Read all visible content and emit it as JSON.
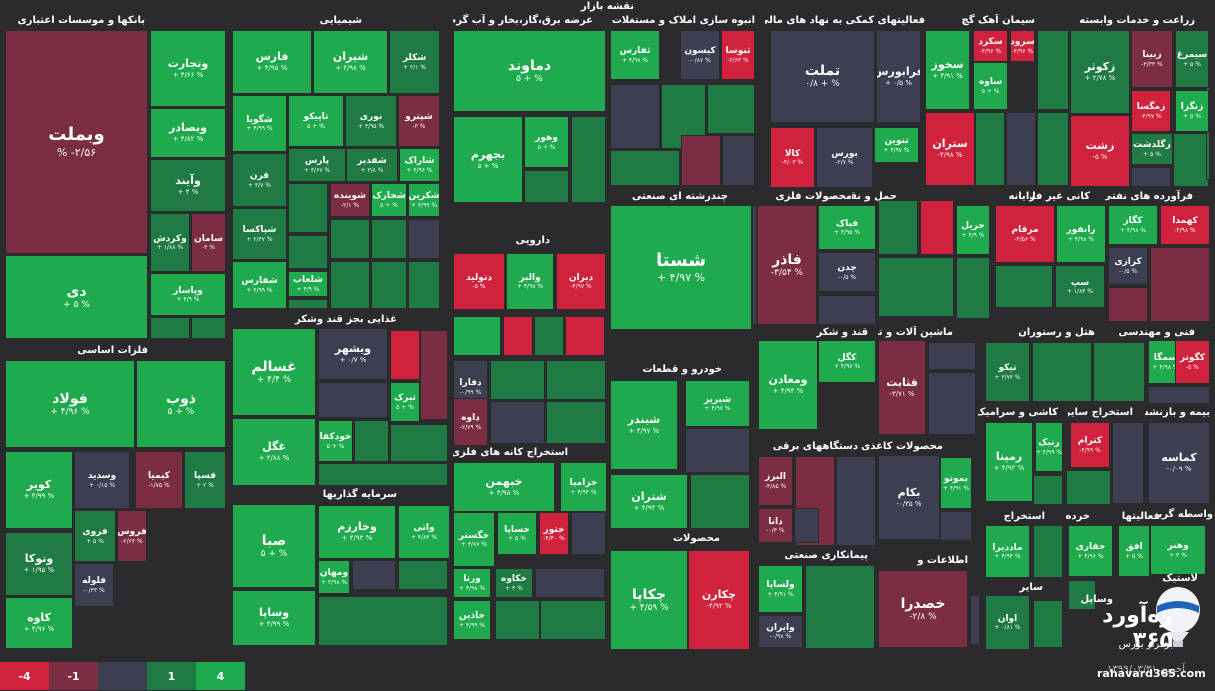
{
  "page_title": "نقشه بازار",
  "legend": [
    "-4",
    "-1",
    "",
    "1",
    "4"
  ],
  "legend_colors": [
    "#d0223d",
    "#7b2d42",
    "#3c3f52",
    "#1f7a44",
    "#1fab4d"
  ],
  "footer": {
    "date_label": "آخرین ۱۳۹۹/۰۳/۳۱",
    "site": "rahavard365.com",
    "brand_name": "ره‌آورد ۳۶۵",
    "brand_tagline": "برفراز بورس"
  },
  "colors": {
    "g4": "#1fab4d",
    "g1": "#1f7a44",
    "n": "#3c3f52",
    "r1": "#7b2d42",
    "r4": "#d0223d",
    "bg": "#2b2b2e"
  },
  "headers": [
    "بانکها و موسسات اعتباری",
    "شیمیایی",
    "عرضه برق،گاز،بخار و آب گرم",
    "انبوه سازی املاک و مستغلات",
    "فعالیتهای کمکی به نهاد های مالی",
    "سیمان آهک گچ",
    "زراعت و خدمات وابسته",
    "فلزات اساسی",
    "غذایی بجز قند وشکر",
    "سرمایه گذاریها",
    "دارویی",
    "چندرشته ای صنعتی",
    "محصولات فلزی",
    "حمل و نقل انبارداری و",
    "رایانه",
    "کانی غیر فلزی",
    "فرآورده های نفتی",
    "خودرو و قطعات",
    "استخراج کانه های فلزی",
    "قند و شکر",
    "ماشین آلات و تجهیزات",
    "هتل و رستوران",
    "فنی و مهندسی",
    "کاشی و سرامیک",
    "استخراج سایر",
    "بیمه و بازنشستگی",
    "دستگاههای برقی",
    "محصولات کاغذی",
    "محصولات",
    "استخراج",
    "خرده",
    "فعالیتها",
    "واسطه گریهای مالی و",
    "پیمانکاری صنعتی",
    "اطلاعات و",
    "سایر",
    "لاستیک و",
    "وسایل"
  ],
  "tiles": [
    [
      "وبملت",
      "% -۲/۵۶",
      "r1"
    ],
    [
      "دی",
      "+ ۵ %",
      "g4"
    ],
    [
      "وتجارت",
      "+ ۴/۶۶ %",
      "g4"
    ],
    [
      "وبصادر",
      "+ ۴/۸۲ %",
      "g4"
    ],
    [
      "وآیند",
      "+ ۴ %",
      "g1"
    ],
    [
      "وکردش",
      "+ ۱/۸۸ %",
      "g1"
    ],
    [
      "سامان",
      "-۳ %",
      "r1"
    ],
    [
      "وپاسار",
      "+ ۴/۹ %",
      "g4"
    ],
    [
      "فارس",
      "+ ۴/۹۵ %",
      "g4"
    ],
    [
      "شیران",
      "+ ۴/۹۸ %",
      "g4"
    ],
    [
      "شکلر",
      "+ ۳/۱ %",
      "g1"
    ],
    [
      "شگویا",
      "+ ۴/۹۹ %",
      "g4"
    ],
    [
      "تاپیکو",
      "۵ + %",
      "g4"
    ],
    [
      "نوری",
      "+ ۳/۹۵ %",
      "g1"
    ],
    [
      "شپترو",
      "-۳ %",
      "r1"
    ],
    [
      "قرن",
      "+ ۳/۷ %",
      "g1"
    ],
    [
      "پارس",
      "+ ۳/۶۷ %",
      "g1"
    ],
    [
      "شفدیر",
      "+ ۳/۸ %",
      "g1"
    ],
    [
      "شاراک",
      "+ ۴/۹۶ %",
      "g4"
    ],
    [
      "شپاکسا",
      "+ ۲/۳۷ %",
      "g1"
    ],
    [
      "شوینده",
      "-۲/۱ %",
      "r1"
    ],
    [
      "شخارک",
      "۵ + %",
      "g4"
    ],
    [
      "شکرین",
      "+ ۴/۹۹ %",
      "g4"
    ],
    [
      "شفارس",
      "+ ۴/۹۹ %",
      "g4"
    ],
    [
      "شلعاب",
      "+ ۴/۹ %",
      "g4"
    ],
    [
      "دماوند",
      "۵ + %",
      "g4"
    ],
    [
      "بجهرم",
      "۵ + %",
      "g4"
    ],
    [
      "وهور",
      "۵ + %",
      "g4"
    ],
    [
      "ثفارس",
      "+ ۴/۹۸ %",
      "g4"
    ],
    [
      "کیسون",
      "-۰/۸۷ %",
      "n"
    ],
    [
      "ثنوسا",
      "-۳/۶۳ %",
      "r4"
    ],
    [
      "تملت",
      "۰/۸ + %",
      "n"
    ],
    [
      "فرابورس",
      "+ ۰/۵ %",
      "n"
    ],
    [
      "کالا",
      "-۴/۰۳ %",
      "r4"
    ],
    [
      "بورس",
      "-۲/۷ %",
      "n"
    ],
    [
      "تنوین",
      "+ ۴/۹۷ %",
      "g4"
    ],
    [
      "سخوز",
      "+ ۴/۹۱ %",
      "g4"
    ],
    [
      "سکرد",
      "-۴/۹۶ %",
      "r4"
    ],
    [
      "سرود",
      "-۴/۹۶ %",
      "r4"
    ],
    [
      "ساوه",
      "۵ + %",
      "g4"
    ],
    [
      "ستران",
      "-۴/۹۸ %",
      "r4"
    ],
    [
      "زکوثر",
      "+ ۲/۷۸ %",
      "g1"
    ],
    [
      "زبینا",
      "-۳/۳۳ %",
      "r1"
    ],
    [
      "سیمرغ",
      "+ ۵ %",
      "g1"
    ],
    [
      "زمگسا",
      "-۴/۹۷ %",
      "r4"
    ],
    [
      "زنگزا",
      "+ ۵ %",
      "g4"
    ],
    [
      "زشت",
      "-۵ %",
      "r4"
    ],
    [
      "زگلدشت",
      "+ ۵ %",
      "g1"
    ],
    [
      "فولاد",
      "+ ۴/۹۶ %",
      "g4"
    ],
    [
      "ذوب",
      "۵ + %",
      "g4"
    ],
    [
      "کویر",
      "+ ۴/۹۹ %",
      "g4"
    ],
    [
      "وسدید",
      "+ ۰/۱۵ %",
      "n"
    ],
    [
      "کیمیا",
      "-۱/۷۵ %",
      "r1"
    ],
    [
      "فسپا",
      "+ ۲ %",
      "g1"
    ],
    [
      "فروی",
      "+ ۵ %",
      "g1"
    ],
    [
      "فروس",
      "-۲/۶۳ %",
      "r1"
    ],
    [
      "وتوکا",
      "+ ۱/۹۵ %",
      "g1"
    ],
    [
      "فلوله",
      "-۰/۳۳ %",
      "n"
    ],
    [
      "کاوه",
      "+ ۴/۹۶ %",
      "g4"
    ],
    [
      "غسالم",
      "+ ۴/۴ %",
      "g4"
    ],
    [
      "ویشهر",
      "+ ۰/۷ %",
      "n"
    ],
    [
      "تبرک",
      "۵ + %",
      "g4"
    ],
    [
      "خودکفا",
      "۵ + %",
      "g4"
    ],
    [
      "غگل",
      "+ ۴/۸۸ %",
      "g4"
    ],
    [
      "صبا",
      "۵ + %",
      "g4"
    ],
    [
      "وخارزم",
      "+ ۴/۹۳ %",
      "g4"
    ],
    [
      "واتی",
      "+ ۴/۸۳ %",
      "g4"
    ],
    [
      "ومهان",
      "+ ۴/۹۸ %",
      "g4"
    ],
    [
      "وساپا",
      "+ ۴/۹۹ %",
      "g4"
    ],
    [
      "دتولید",
      "-۵ %",
      "r4"
    ],
    [
      "والبر",
      "+ ۴/۹۸ %",
      "g4"
    ],
    [
      "دیران",
      "-۴/۹۷ %",
      "r4"
    ],
    [
      "دفارا",
      "-۰/۹۹ %",
      "n"
    ],
    [
      "داوه",
      "-۲/۷۹ %",
      "r1"
    ],
    [
      "شستا",
      "+ ۴/۹۷ %",
      "g4"
    ],
    [
      "فباک",
      "+ ۴/۹۵ %",
      "g4"
    ],
    [
      "فاذر",
      "-۳/۵۴ %",
      "r1"
    ],
    [
      "چدن",
      "-۰/۵ %",
      "n"
    ],
    [
      "حریل",
      "+ ۴/۹ %",
      "g4"
    ],
    [
      "مرقام",
      "-۴/۵۶ %",
      "r4"
    ],
    [
      "رانفور",
      "+ ۴/۹۸ %",
      "g4"
    ],
    [
      "سپ",
      "+ ۱/۸۴ %",
      "g1"
    ],
    [
      "کگاز",
      "+ ۴/۹۸ %",
      "g4"
    ],
    [
      "کهمدا",
      "-۴/۹۸ %",
      "r4"
    ],
    [
      "کرازی",
      "-۰/۵ %",
      "n"
    ],
    [
      "شبندر",
      "+ ۴/۹۷ %",
      "g4"
    ],
    [
      "شبریز",
      "+ ۴/۹۷ %",
      "g4"
    ],
    [
      "شتران",
      "+ ۴/۹۴ %",
      "g4"
    ],
    [
      "کگل",
      "+ ۴/۹۷ %",
      "g4"
    ],
    [
      "ومعادن",
      "+ ۴/۹۴ %",
      "g4"
    ],
    [
      "قثابت",
      "-۳/۷۱ %",
      "r1"
    ],
    [
      "تیکو",
      "+ ۳/۷۳ %",
      "g1"
    ],
    [
      "سمگا",
      "+ ۴/۹۸ %",
      "g4"
    ],
    [
      "رنیک",
      "+ ۴/۹۹ %",
      "g4"
    ],
    [
      "رمپنا",
      "+ ۴/۹۲ %",
      "g4"
    ],
    [
      "کترام",
      "-۴/۹۹ %",
      "r4"
    ],
    [
      "کماسه",
      "-۰/۰۹ %",
      "n"
    ],
    [
      "البرز",
      "-۴/۸۵ %",
      "r1"
    ],
    [
      "دانا",
      "-۰/۳ %",
      "r1"
    ],
    [
      "بکام",
      "-۰/۳۵ %",
      "n"
    ],
    [
      "بموتو",
      "+ ۴/۹۱ %",
      "g4"
    ],
    [
      "خبهمن",
      "+ ۴/۹۸ %",
      "g4"
    ],
    [
      "خزامیا",
      "+ ۴/۹۴ %",
      "g4"
    ],
    [
      "خگستر",
      "+ ۴/۸۷ %",
      "g4"
    ],
    [
      "خساپا",
      "+ ۵ %",
      "g4"
    ],
    [
      "ختور",
      "-۴/۴۰ %",
      "r4"
    ],
    [
      "ورنا",
      "+ ۴/۹۸ %",
      "g4"
    ],
    [
      "خکاوه",
      "+ ۳ %",
      "g1"
    ],
    [
      "خاذین",
      "+ ۴/۹۹ %",
      "g4"
    ],
    [
      "چکاپا",
      "+ ۴/۵۹ %",
      "g4"
    ],
    [
      "چکارن",
      "-۴/۹۲ %",
      "r4"
    ],
    [
      "ماددیرا",
      "+ ۴/۹۴ %",
      "g4"
    ],
    [
      "حفاری",
      "+ ۴/۹۶ %",
      "g4"
    ],
    [
      "افق",
      "+ ۵ %",
      "g4"
    ],
    [
      "وهنر",
      "+ ۳ %",
      "g4"
    ],
    [
      "ولساپا",
      "+ ۴/۹۱ %",
      "g4"
    ],
    [
      "وایران",
      "-۰/۹۸ %",
      "n"
    ],
    [
      "خصدرا",
      "-۲/۸ %",
      "r1"
    ],
    [
      "اوان",
      "+ ۰/۸۱ %",
      "g1"
    ],
    [
      "کگوتر",
      "-۵ %",
      "r4"
    ]
  ]
}
